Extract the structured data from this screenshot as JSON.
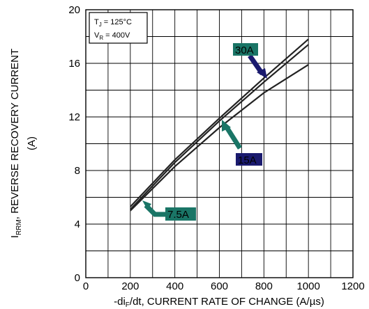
{
  "chart_data": {
    "type": "line",
    "title": "",
    "xlabel": "-di",
    "xlabel_sub": "F",
    "xlabel_rest": "/dt, CURRENT RATE OF CHANGE (A/µs)",
    "ylabel_main": "I",
    "ylabel_sub": "RRM",
    "ylabel_rest": ", REVERSE RECOVERY CURRENT",
    "ylabel_unit": "(A)",
    "xlim": [
      0,
      1200
    ],
    "ylim": [
      0,
      20
    ],
    "xticks": [
      0,
      200,
      400,
      600,
      800,
      1000,
      1200
    ],
    "yticks": [
      0,
      4,
      8,
      12,
      16,
      20
    ],
    "xtick_labels": [
      "0",
      "200",
      "400",
      "600",
      "800",
      "1000",
      "1200"
    ],
    "ytick_labels": [
      "0",
      "4",
      "8",
      "12",
      "16",
      "20"
    ],
    "grid": true,
    "conditions": {
      "tj_main": "T",
      "tj_sub": "J",
      "tj_rest": " = 125°C",
      "vr_main": "V",
      "vr_sub": "R",
      "vr_rest": " = 400V"
    },
    "series": [
      {
        "name": "30A",
        "x": [
          200,
          400,
          600,
          800,
          1000
        ],
        "y": [
          5.3,
          8.8,
          11.9,
          14.9,
          17.8
        ]
      },
      {
        "name": "15A",
        "x": [
          200,
          400,
          600,
          800,
          1000
        ],
        "y": [
          5.1,
          8.6,
          11.7,
          14.6,
          17.4
        ]
      },
      {
        "name": "7.5A",
        "x": [
          200,
          400,
          600,
          800,
          1000
        ],
        "y": [
          5.0,
          8.3,
          11.2,
          13.8,
          15.9
        ]
      }
    ],
    "callouts": [
      {
        "label": "30A",
        "series": "30A",
        "color": "#1a7566"
      },
      {
        "label": "15A",
        "series": "15A",
        "color": "#1a1a6e"
      },
      {
        "label": "7.5A",
        "series": "7.5A",
        "color": "#1a7566"
      }
    ]
  }
}
